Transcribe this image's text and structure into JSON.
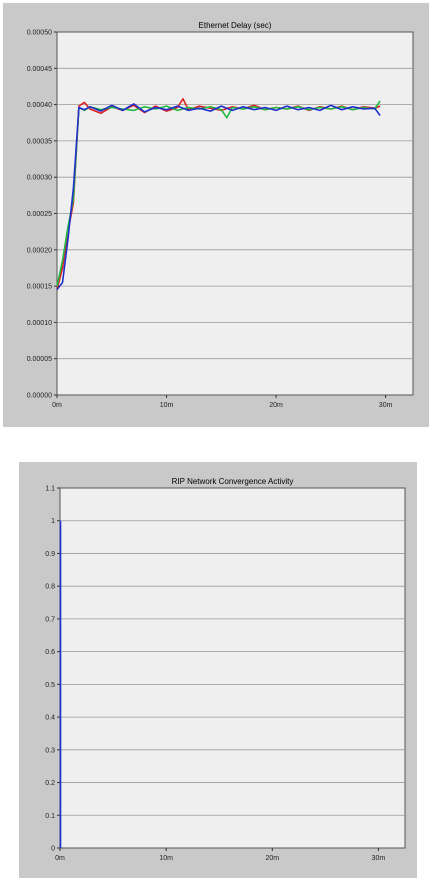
{
  "chart_data": [
    {
      "type": "line",
      "title": "Ethernet Delay (sec)",
      "xlabel": "",
      "ylabel": "",
      "x_tick_labels": [
        "0m",
        "10m",
        "20m",
        "30m"
      ],
      "x_ticks": [
        0,
        10,
        20,
        30
      ],
      "y_tick_labels": [
        "0.00000",
        "0.00005",
        "0.00010",
        "0.00015",
        "0.00020",
        "0.00025",
        "0.00030",
        "0.00035",
        "0.00040",
        "0.00045",
        "0.00050"
      ],
      "y_ticks": [
        0,
        5e-05,
        0.0001,
        0.00015,
        0.0002,
        0.00025,
        0.0003,
        0.00035,
        0.0004,
        0.00045,
        0.0005
      ],
      "xlim": [
        0,
        32.5
      ],
      "ylim": [
        0,
        0.0005
      ],
      "grid": true,
      "legend": "none",
      "series": [
        {
          "color": "#dd2222",
          "x": [
            0,
            0.5,
            1.0,
            1.5,
            2.0,
            2.5,
            3.0,
            4.0,
            5.0,
            6.0,
            7.0,
            8.0,
            9.0,
            10.0,
            11.0,
            11.5,
            12.0,
            13.0,
            14.0,
            15.0,
            16.0,
            17.0,
            18.0,
            19.0,
            20.0,
            21.0,
            22.0,
            23.0,
            24.0,
            25.0,
            26.0,
            27.0,
            28.0,
            29.0,
            29.5
          ],
          "y": [
            0.000145,
            0.000175,
            0.000225,
            0.000265,
            0.000398,
            0.000403,
            0.000394,
            0.000388,
            0.000397,
            0.000392,
            0.000399,
            0.000389,
            0.000398,
            0.000391,
            0.000396,
            0.000408,
            0.000393,
            0.000398,
            0.000395,
            0.000392,
            0.000397,
            0.000394,
            0.000399,
            0.000393,
            0.000396,
            0.000394,
            0.000398,
            0.000392,
            0.000397,
            0.000394,
            0.000398,
            0.000393,
            0.000397,
            0.000395,
            0.000398
          ]
        },
        {
          "color": "#22bb44",
          "x": [
            0,
            0.5,
            1.0,
            1.5,
            2.0,
            2.5,
            3.0,
            4.0,
            5.0,
            6.0,
            7.0,
            8.0,
            9.0,
            10.0,
            11.0,
            12.0,
            13.0,
            14.0,
            15.0,
            15.5,
            16.0,
            17.0,
            18.0,
            19.0,
            20.0,
            21.0,
            22.0,
            23.0,
            24.0,
            25.0,
            26.0,
            27.0,
            28.0,
            29.0,
            29.5
          ],
          "y": [
            0.00015,
            0.000185,
            0.000232,
            0.00027,
            0.000396,
            0.000392,
            0.000397,
            0.000393,
            0.000396,
            0.000394,
            0.000392,
            0.000397,
            0.000394,
            0.000398,
            0.000392,
            0.000396,
            0.000394,
            0.000397,
            0.000393,
            0.000382,
            0.000396,
            0.000394,
            0.000397,
            0.000393,
            0.000396,
            0.000394,
            0.000397,
            0.000393,
            0.000396,
            0.000394,
            0.000397,
            0.000393,
            0.000396,
            0.000394,
            0.000405
          ]
        },
        {
          "color": "#1f2fcc",
          "x": [
            0,
            0.5,
            1.0,
            1.5,
            2.0,
            2.5,
            3.0,
            4.0,
            5.0,
            6.0,
            7.0,
            8.0,
            9.0,
            10.0,
            11.0,
            12.0,
            13.0,
            14.0,
            15.0,
            16.0,
            17.0,
            18.0,
            19.0,
            20.0,
            21.0,
            22.0,
            23.0,
            24.0,
            25.0,
            26.0,
            27.0,
            28.0,
            29.0,
            29.5
          ],
          "y": [
            0.000145,
            0.000155,
            0.000215,
            0.000285,
            0.000396,
            0.000393,
            0.000397,
            0.000391,
            0.000399,
            0.000392,
            0.000401,
            0.00039,
            0.000396,
            0.000393,
            0.000398,
            0.000392,
            0.000395,
            0.000391,
            0.000398,
            0.000392,
            0.000397,
            0.000393,
            0.000396,
            0.000392,
            0.000398,
            0.000393,
            0.000396,
            0.000392,
            0.000399,
            0.000393,
            0.000397,
            0.000394,
            0.000395,
            0.000385
          ]
        }
      ]
    },
    {
      "type": "line",
      "title": "RIP Network Convergence Activity",
      "xlabel": "",
      "ylabel": "",
      "x_tick_labels": [
        "0m",
        "10m",
        "20m",
        "30m"
      ],
      "x_ticks": [
        0,
        10,
        20,
        30
      ],
      "y_tick_labels": [
        "0",
        "0.1",
        "0.2",
        "0.3",
        "0.4",
        "0.5",
        "0.6",
        "0.7",
        "0.8",
        "0.9",
        "1",
        "1.1"
      ],
      "y_ticks": [
        0,
        0.1,
        0.2,
        0.3,
        0.4,
        0.5,
        0.6,
        0.7,
        0.8,
        0.9,
        1.0,
        1.1
      ],
      "xlim": [
        0,
        32.5
      ],
      "ylim": [
        0,
        1.1
      ],
      "grid": true,
      "legend": "none",
      "series": [
        {
          "color": "#1f2fcc",
          "x": [
            0.05,
            0.05
          ],
          "y": [
            0,
            1
          ]
        }
      ]
    }
  ]
}
